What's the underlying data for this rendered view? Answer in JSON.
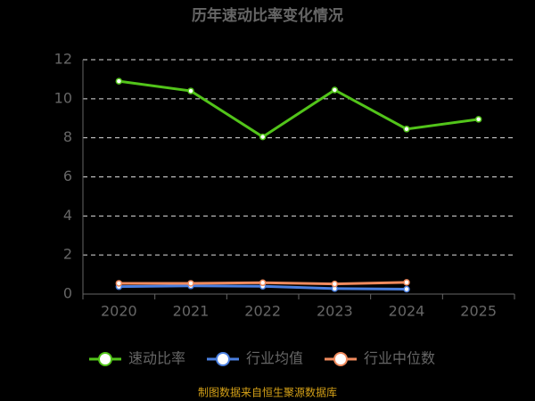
{
  "chart_data": {
    "type": "line",
    "title": "历年速动比率变化情况",
    "categories": [
      "2020",
      "2021",
      "2022",
      "2023",
      "2024",
      "2025"
    ],
    "series": [
      {
        "name": "速动比率",
        "color": "#52c41a",
        "values": [
          10.9,
          10.4,
          8.05,
          10.45,
          8.45,
          8.95
        ]
      },
      {
        "name": "行业均值",
        "color": "#4a7fe0",
        "values": [
          0.38,
          0.42,
          0.4,
          0.28,
          0.25,
          null
        ]
      },
      {
        "name": "行业中位数",
        "color": "#f08a5d",
        "values": [
          0.55,
          0.55,
          0.58,
          0.52,
          0.6,
          null
        ]
      }
    ],
    "ylim": [
      0,
      12
    ],
    "yticks": [
      0,
      2,
      4,
      6,
      8,
      10,
      12
    ],
    "grid": true,
    "legend": "bottom",
    "source": "制图数据来自恒生聚源数据库"
  }
}
